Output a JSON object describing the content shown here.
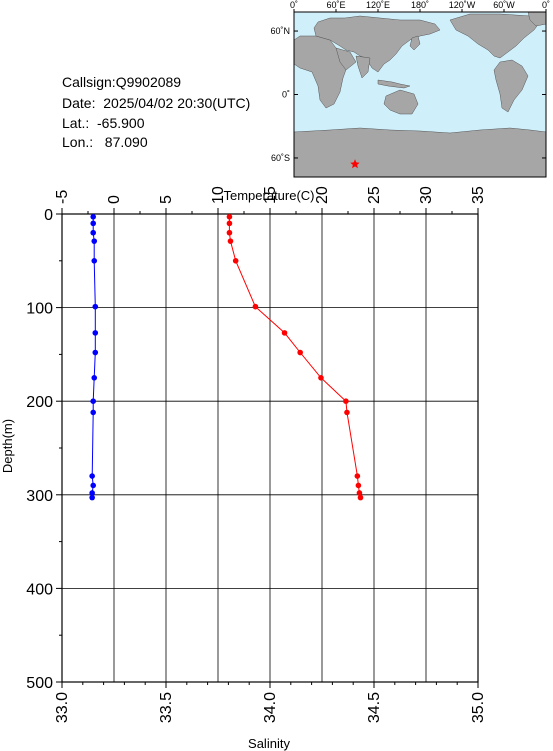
{
  "header": {
    "callsign": "Callsign:Q9902089",
    "date": "Date:  2025/04/02 20:30(UTC)",
    "lat": "Lat.:  -65.900",
    "lon": "Lon.:   87.090"
  },
  "map": {
    "lon_ticks": [
      "0˚",
      "60˚E",
      "120˚E",
      "180˚",
      "120˚W",
      "60˚W",
      "0˚"
    ],
    "lat_ticks": [
      "60˚N",
      "0˚",
      "60˚S"
    ],
    "ocean_color": "#cfeffb",
    "land_color": "#a6a6a6",
    "marker": {
      "lon": 87.09,
      "lat": -65.9,
      "color": "#ff0000",
      "symbol": "star"
    }
  },
  "chart_data": {
    "type": "line",
    "ylabel": "Depth(m)",
    "y_range": [
      0,
      500
    ],
    "y_ticks": [
      "0",
      "100",
      "200",
      "300",
      "400",
      "500"
    ],
    "y_inverted": true,
    "grid": true,
    "temperature_axis": {
      "label": "Temperature(C)",
      "position": "top",
      "range": [
        -5,
        35
      ],
      "ticks": [
        "-5",
        "0",
        "5",
        "10",
        "15",
        "20",
        "25",
        "30",
        "35"
      ]
    },
    "salinity_axis": {
      "label": "Salinity",
      "position": "bottom",
      "range": [
        33.0,
        35.0
      ],
      "ticks": [
        "33.0",
        "33.5",
        "34.0",
        "34.5",
        "35.0"
      ]
    },
    "series": [
      {
        "axis": "temperature",
        "color": "#ff0000",
        "points": [
          {
            "x": 11.1,
            "y": 3
          },
          {
            "x": 11.1,
            "y": 10
          },
          {
            "x": 11.1,
            "y": 20
          },
          {
            "x": 11.2,
            "y": 29
          },
          {
            "x": 11.7,
            "y": 50
          },
          {
            "x": 13.6,
            "y": 99
          },
          {
            "x": 16.4,
            "y": 127
          },
          {
            "x": 17.9,
            "y": 148
          },
          {
            "x": 19.9,
            "y": 175
          },
          {
            "x": 22.3,
            "y": 200
          },
          {
            "x": 22.4,
            "y": 212
          },
          {
            "x": 23.4,
            "y": 280
          },
          {
            "x": 23.5,
            "y": 290
          },
          {
            "x": 23.6,
            "y": 298
          },
          {
            "x": 23.7,
            "y": 303
          }
        ]
      },
      {
        "axis": "salinity",
        "color": "#0000ff",
        "points": [
          {
            "x": 33.15,
            "y": 3
          },
          {
            "x": 33.15,
            "y": 10
          },
          {
            "x": 33.15,
            "y": 20
          },
          {
            "x": 33.155,
            "y": 29
          },
          {
            "x": 33.155,
            "y": 50
          },
          {
            "x": 33.16,
            "y": 99
          },
          {
            "x": 33.16,
            "y": 127
          },
          {
            "x": 33.16,
            "y": 148
          },
          {
            "x": 33.155,
            "y": 175
          },
          {
            "x": 33.15,
            "y": 200
          },
          {
            "x": 33.15,
            "y": 212
          },
          {
            "x": 33.145,
            "y": 280
          },
          {
            "x": 33.15,
            "y": 290
          },
          {
            "x": 33.145,
            "y": 298
          },
          {
            "x": 33.145,
            "y": 303
          }
        ]
      }
    ]
  }
}
